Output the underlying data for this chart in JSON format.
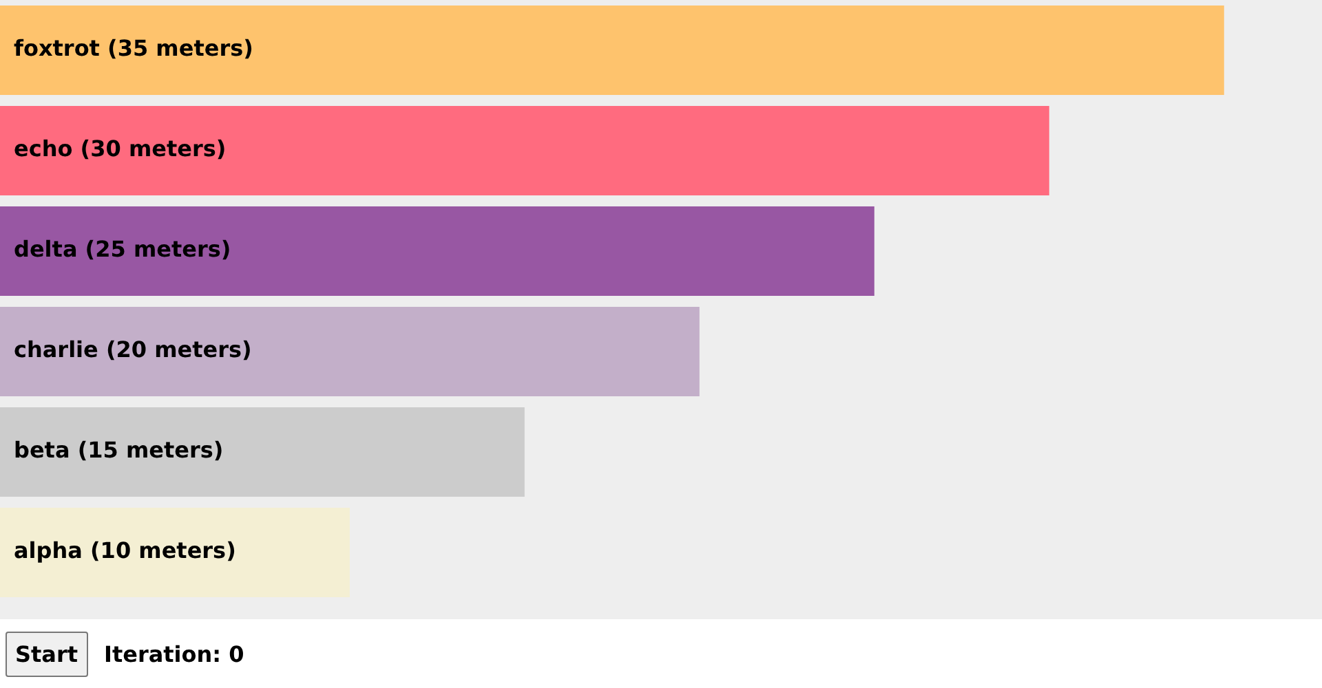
{
  "chart_data": {
    "type": "bar",
    "orientation": "horizontal",
    "categories": [
      "foxtrot",
      "echo",
      "delta",
      "charlie",
      "beta",
      "alpha"
    ],
    "values": [
      35,
      30,
      25,
      20,
      15,
      10
    ],
    "value_labels": [
      "(35 meters)",
      "(30 meters)",
      "(25 meters)",
      "(20 meters)",
      "(15 meters)",
      "(10 meters)"
    ],
    "colors": [
      "#fec36d",
      "#ff6b7f",
      "#9857a3",
      "#c3afc9",
      "#cccccc",
      "#f4efd3"
    ],
    "xlim": [
      0,
      37.8
    ],
    "tick_labels": false,
    "legend": false,
    "annotations": [
      "Start",
      "Iteration: 0"
    ]
  }
}
